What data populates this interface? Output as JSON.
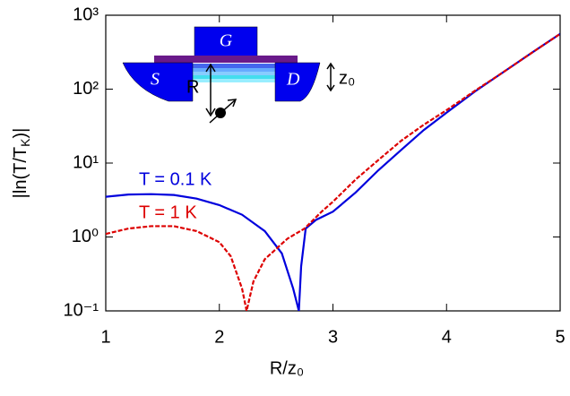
{
  "chart_data": {
    "type": "line",
    "x_label": "R/z₀",
    "y_label_parts": [
      "|ln(T/T",
      "K",
      ")|"
    ],
    "log_y": true,
    "xlim": [
      1,
      5
    ],
    "xticks": [
      1,
      2,
      3,
      4,
      5
    ],
    "ylim": [
      0.1,
      1000
    ],
    "yticks": [
      {
        "value": 0.1,
        "label": "10⁻¹"
      },
      {
        "value": 1,
        "label": "10⁰"
      },
      {
        "value": 10,
        "label": "10¹"
      },
      {
        "value": 100,
        "label": "10²"
      },
      {
        "value": 1000,
        "label": "10³"
      }
    ],
    "series": [
      {
        "name": "T = 0.1 K",
        "color": "#0000dd",
        "dash": false,
        "x": [
          1.0,
          1.2,
          1.4,
          1.6,
          1.8,
          2.0,
          2.2,
          2.4,
          2.55,
          2.65,
          2.7,
          2.72,
          2.76,
          2.85,
          3.0,
          3.2,
          3.4,
          3.6,
          3.8,
          4.0,
          4.25,
          4.5,
          4.75,
          5.0
        ],
        "values": [
          3.5,
          3.75,
          3.8,
          3.7,
          3.3,
          2.7,
          2.0,
          1.2,
          0.6,
          0.2,
          0.1,
          0.4,
          1.3,
          1.7,
          2.2,
          4,
          8,
          15,
          28,
          48,
          93,
          170,
          310,
          560
        ]
      },
      {
        "name": "T = 1 K",
        "color": "#dd0000",
        "dash": true,
        "x": [
          1.0,
          1.2,
          1.4,
          1.6,
          1.8,
          2.0,
          2.1,
          2.2,
          2.24,
          2.3,
          2.4,
          2.6,
          2.75,
          2.9,
          3.0,
          3.2,
          3.4,
          3.6,
          3.8,
          4.0,
          4.25,
          4.5,
          4.75,
          5.0
        ],
        "values": [
          1.1,
          1.3,
          1.4,
          1.4,
          1.2,
          0.85,
          0.55,
          0.2,
          0.1,
          0.25,
          0.5,
          0.95,
          1.3,
          2.2,
          3.0,
          6,
          11,
          20,
          33,
          52,
          95,
          170,
          310,
          560
        ]
      }
    ],
    "inset_labels": [
      "G",
      "S",
      "D",
      "R",
      "z₀"
    ]
  }
}
